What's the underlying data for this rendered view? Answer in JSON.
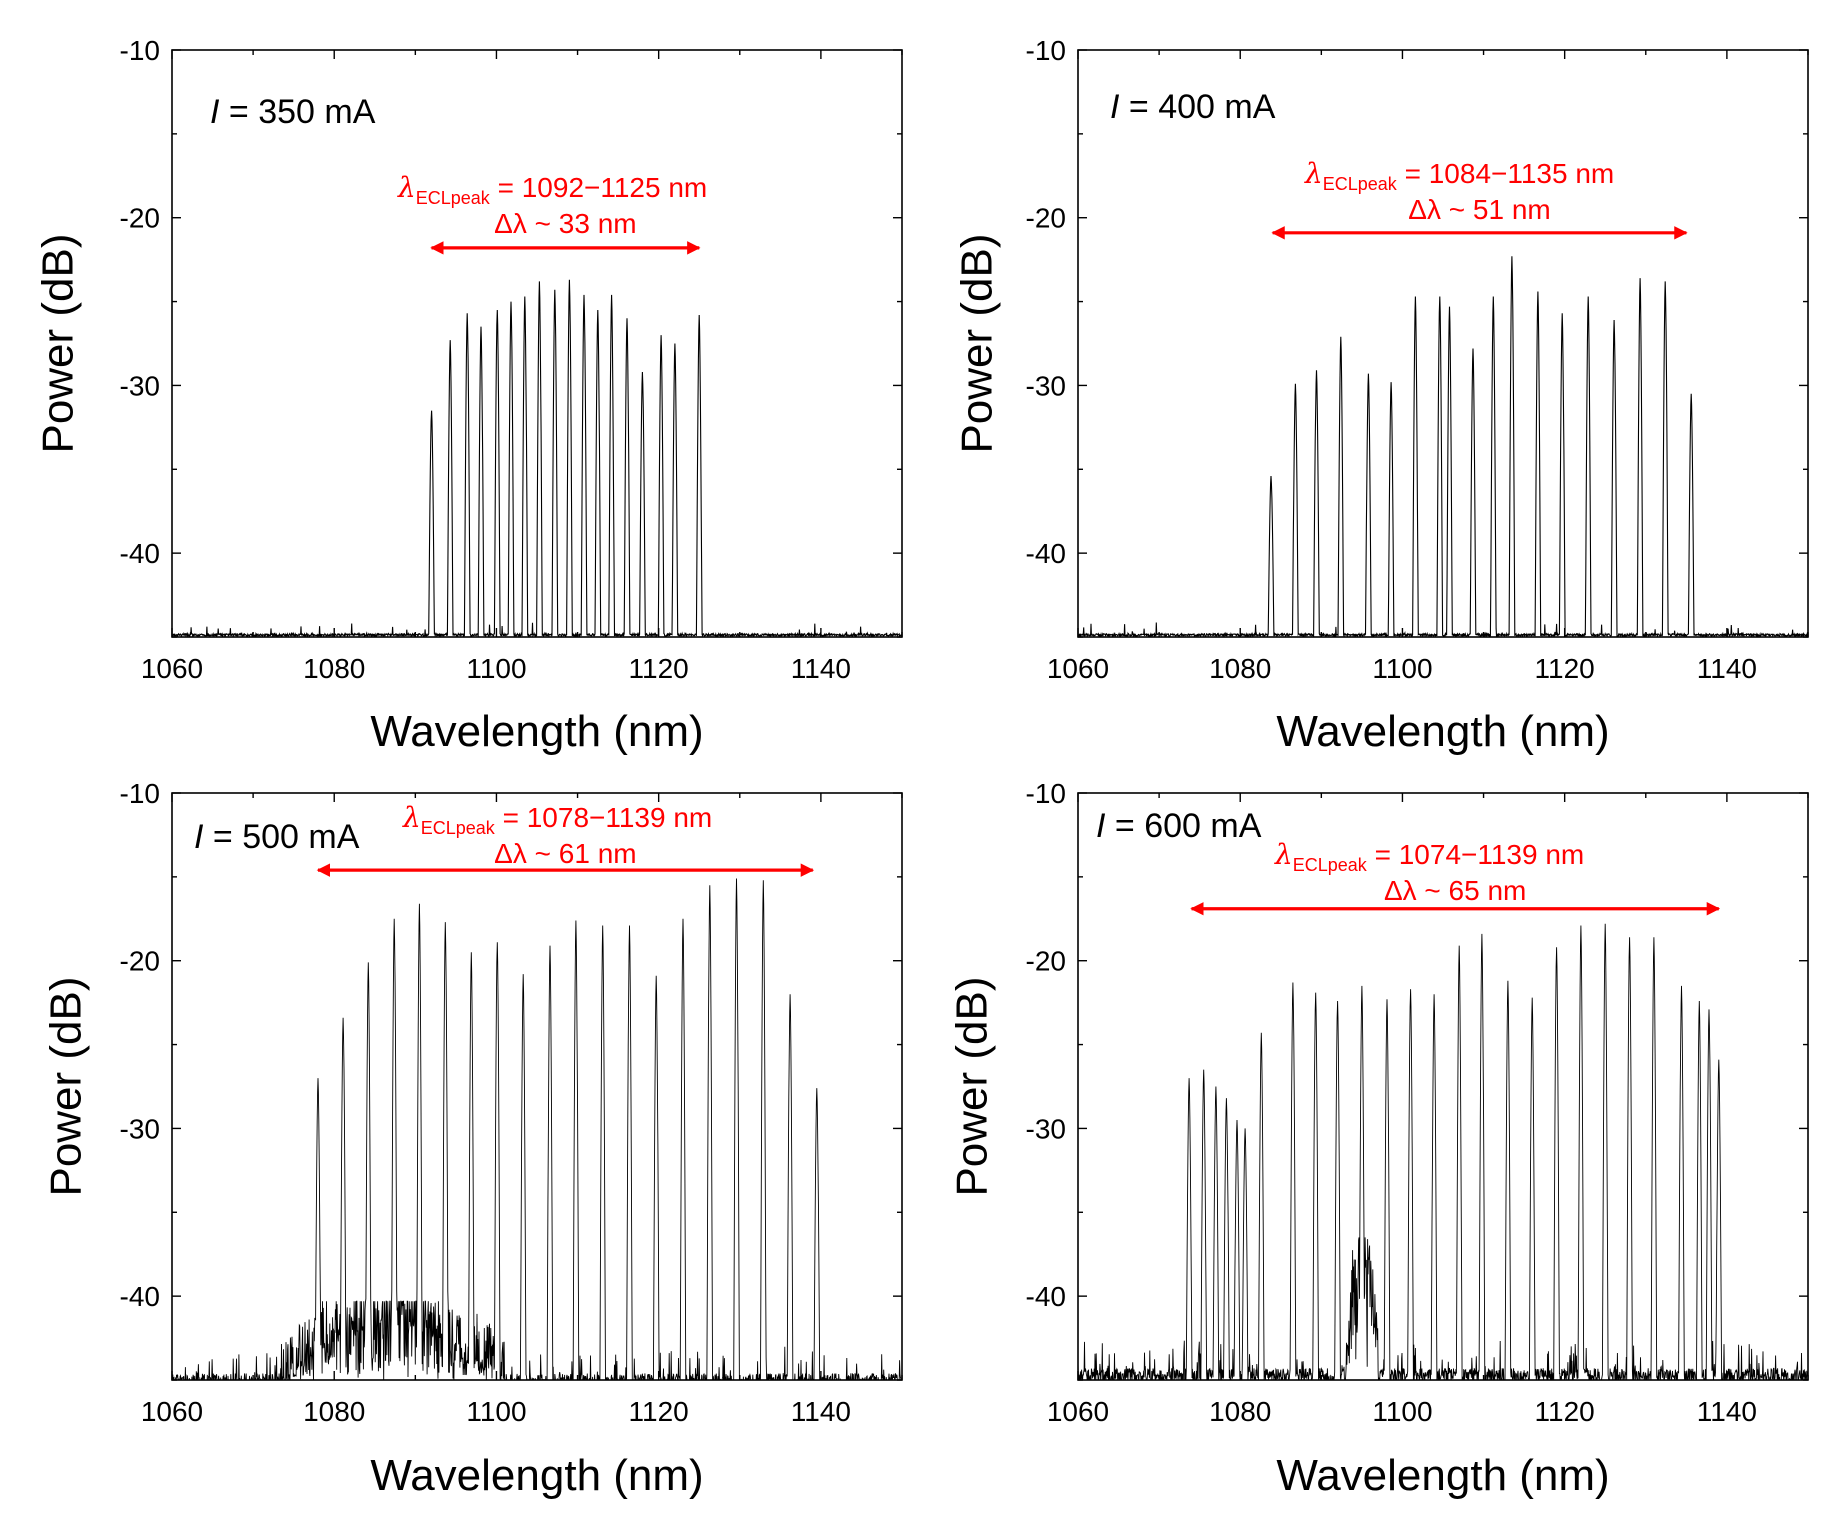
{
  "chart_data": [
    {
      "type": "line",
      "panel": "top-left",
      "xlabel": "Wavelength (nm)",
      "ylabel": "Power (dB)",
      "xlim": [
        1060,
        1150
      ],
      "ylim": [
        -45,
        -10
      ],
      "xticks": [
        1060,
        1080,
        1100,
        1120,
        1140
      ],
      "yticks": [
        -10,
        -20,
        -30,
        -40
      ],
      "current_symbol": "I",
      "current_text": " = 350 mA",
      "range_text": " = 1092−1125 nm",
      "delta_text": "Δλ ~ 33 nm",
      "range_nm": [
        1092,
        1125
      ],
      "arrow_y": -21.8,
      "noise_floor": -44.8,
      "noise_level": "low",
      "broadband_hump": null,
      "series": [
        {
          "name": "ECL peaks",
          "peaks_nm": [
            1092.0,
            1094.3,
            1096.4,
            1098.1,
            1100.1,
            1101.8,
            1103.5,
            1105.3,
            1107.2,
            1109.0,
            1110.8,
            1112.5,
            1114.2,
            1116.1,
            1118.0,
            1120.3,
            1122.0,
            1125.0
          ],
          "peaks_db": [
            -31.5,
            -27.3,
            -25.7,
            -26.5,
            -25.5,
            -25.0,
            -24.7,
            -23.8,
            -24.3,
            -23.7,
            -24.6,
            -25.5,
            -24.6,
            -26.0,
            -29.2,
            -27.0,
            -27.5,
            -25.8
          ]
        }
      ]
    },
    {
      "type": "line",
      "panel": "top-right",
      "xlabel": "Wavelength (nm)",
      "ylabel": "Power (dB)",
      "xlim": [
        1060,
        1150
      ],
      "ylim": [
        -45,
        -10
      ],
      "xticks": [
        1060,
        1080,
        1100,
        1120,
        1140
      ],
      "yticks": [
        -10,
        -20,
        -30,
        -40
      ],
      "current_symbol": "I",
      "current_text": " = 400 mA",
      "range_text": " = 1084−1135 nm",
      "delta_text": "Δλ ~ 51 nm",
      "range_nm": [
        1084,
        1135
      ],
      "arrow_y": -20.9,
      "noise_floor": -44.8,
      "noise_level": "low",
      "broadband_hump": null,
      "series": [
        {
          "name": "ECL peaks",
          "peaks_nm": [
            1083.8,
            1086.8,
            1089.4,
            1092.4,
            1095.8,
            1098.6,
            1101.6,
            1104.6,
            1105.8,
            1108.7,
            1111.2,
            1113.5,
            1116.7,
            1119.7,
            1122.9,
            1126.1,
            1129.3,
            1132.4,
            1135.6
          ],
          "peaks_db": [
            -35.4,
            -29.9,
            -29.1,
            -27.1,
            -29.3,
            -29.8,
            -24.7,
            -24.7,
            -25.3,
            -27.8,
            -24.7,
            -22.3,
            -24.4,
            -25.7,
            -24.7,
            -26.1,
            -23.6,
            -23.8,
            -30.5
          ]
        }
      ]
    },
    {
      "type": "line",
      "panel": "bottom-left",
      "xlabel": "Wavelength (nm)",
      "ylabel": "Power (dB)",
      "xlim": [
        1060,
        1150
      ],
      "ylim": [
        -45,
        -10
      ],
      "xticks": [
        1060,
        1080,
        1100,
        1120,
        1140
      ],
      "yticks": [
        -10,
        -20,
        -30,
        -40
      ],
      "current_symbol": "I",
      "current_text": " = 500 mA",
      "range_text": " = 1078−1139 nm",
      "delta_text": "Δλ ~ 61 nm",
      "range_nm": [
        1078,
        1139
      ],
      "arrow_y": -14.6,
      "noise_floor": -44.6,
      "noise_level": "high",
      "broadband_hump": {
        "start_nm": 1074,
        "center_nm": 1086,
        "end_nm": 1101,
        "peak_db": -40.8
      },
      "series": [
        {
          "name": "ECL peaks",
          "peaks_nm": [
            1078.0,
            1081.1,
            1084.2,
            1087.4,
            1090.5,
            1093.7,
            1096.9,
            1100.1,
            1103.3,
            1106.6,
            1109.8,
            1113.1,
            1116.4,
            1119.7,
            1123.0,
            1126.3,
            1129.6,
            1132.9,
            1136.2,
            1139.5
          ],
          "peaks_db": [
            -27.0,
            -23.4,
            -20.1,
            -17.5,
            -16.6,
            -17.7,
            -19.5,
            -18.9,
            -20.8,
            -19.1,
            -17.6,
            -17.9,
            -17.9,
            -20.9,
            -17.5,
            -15.5,
            -15.1,
            -15.2,
            -22.0,
            -27.6
          ]
        }
      ]
    },
    {
      "type": "line",
      "panel": "bottom-right",
      "xlabel": "Wavelength (nm)",
      "ylabel": "Power (dB)",
      "xlim": [
        1060,
        1150
      ],
      "ylim": [
        -45,
        -10
      ],
      "xticks": [
        1060,
        1080,
        1100,
        1120,
        1140
      ],
      "yticks": [
        -10,
        -20,
        -30,
        -40
      ],
      "current_symbol": "I",
      "current_text": " = 600 mA",
      "range_text": " = 1074−1139 nm",
      "delta_text": "Δλ ~ 65 nm",
      "range_nm": [
        1074,
        1139
      ],
      "arrow_y": -16.9,
      "noise_floor": -44.3,
      "noise_level": "high",
      "broadband_hump": {
        "start_nm": 1093,
        "center_nm": 1095,
        "end_nm": 1097,
        "peak_db": -37.0
      },
      "series": [
        {
          "name": "ECL peaks",
          "peaks_nm": [
            1073.7,
            1075.5,
            1077.0,
            1078.3,
            1079.6,
            1080.6,
            1082.6,
            1086.5,
            1089.3,
            1092.0,
            1095.0,
            1098.1,
            1101.0,
            1103.9,
            1107.0,
            1109.8,
            1113.0,
            1116.0,
            1119.0,
            1122.0,
            1125.0,
            1128.0,
            1131.0,
            1134.4,
            1136.6,
            1137.8,
            1139.0
          ],
          "peaks_db": [
            -27.0,
            -26.5,
            -27.5,
            -28.2,
            -29.5,
            -30.0,
            -24.3,
            -21.3,
            -21.9,
            -22.4,
            -21.5,
            -22.3,
            -21.7,
            -22.0,
            -19.1,
            -18.4,
            -21.2,
            -22.2,
            -19.2,
            -17.9,
            -17.8,
            -18.6,
            -18.6,
            -21.5,
            -22.4,
            -22.9,
            -25.9
          ]
        }
      ]
    }
  ]
}
